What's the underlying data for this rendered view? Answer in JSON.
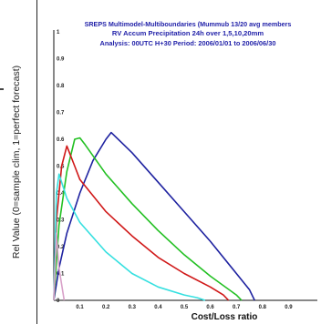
{
  "chart_data": {
    "type": "line",
    "title_lines": [
      "SREPS Multimodel-Multiboundaries   (Mummub 13/20 avg members",
      "RV Accum Precipitation 24h over 1,5,10,20mm",
      "Analysis: 00UTC  H+30   Period: 2006/01/01 to 2006/06/30"
    ],
    "xlabel": "Cost/Loss ratio",
    "ylabel": "Rel Value (0=sample clim, 1=perfect forecast)",
    "xlim": [
      0,
      1
    ],
    "ylim": [
      0,
      1
    ],
    "x_ticks": [
      "0.1",
      "0.2",
      "0.3",
      "0.4",
      "0.5",
      "0.6",
      "0.7",
      "0.8",
      "0.9"
    ],
    "y_ticks": [
      "0",
      "0.1",
      "0.2",
      "0.3",
      "0.4",
      "0.5",
      "0.6",
      "0.7",
      "0.8",
      "0.9",
      "1"
    ],
    "series": [
      {
        "color": "#1e22a0",
        "x": [
          0.0,
          0.02,
          0.05,
          0.1,
          0.15,
          0.2,
          0.22,
          0.3,
          0.4,
          0.5,
          0.6,
          0.7,
          0.75,
          0.77
        ],
        "y": [
          0.0,
          0.12,
          0.25,
          0.4,
          0.52,
          0.6,
          0.625,
          0.55,
          0.44,
          0.33,
          0.22,
          0.1,
          0.04,
          0.0
        ]
      },
      {
        "color": "#22c022",
        "x": [
          0.0,
          0.02,
          0.05,
          0.08,
          0.1,
          0.12,
          0.2,
          0.3,
          0.4,
          0.5,
          0.6,
          0.7,
          0.72
        ],
        "y": [
          0.0,
          0.28,
          0.48,
          0.6,
          0.605,
          0.58,
          0.47,
          0.36,
          0.26,
          0.17,
          0.09,
          0.02,
          0.0
        ]
      },
      {
        "color": "#d01818",
        "x": [
          0.0,
          0.01,
          0.03,
          0.05,
          0.08,
          0.1,
          0.2,
          0.3,
          0.4,
          0.5,
          0.6,
          0.65,
          0.67
        ],
        "y": [
          0.0,
          0.3,
          0.5,
          0.575,
          0.5,
          0.45,
          0.33,
          0.24,
          0.16,
          0.1,
          0.05,
          0.02,
          0.0
        ]
      },
      {
        "color": "#36e0e0",
        "x": [
          0.0,
          0.01,
          0.02,
          0.05,
          0.1,
          0.2,
          0.3,
          0.4,
          0.5,
          0.55,
          0.58
        ],
        "y": [
          0.0,
          0.4,
          0.47,
          0.38,
          0.29,
          0.18,
          0.1,
          0.05,
          0.02,
          0.01,
          0.0
        ]
      },
      {
        "color": "#d8a0c8",
        "x": [
          0.0,
          0.01,
          0.02,
          0.04
        ],
        "y": [
          0.0,
          0.25,
          0.12,
          0.0
        ]
      }
    ],
    "grid": false,
    "legend": "none"
  }
}
